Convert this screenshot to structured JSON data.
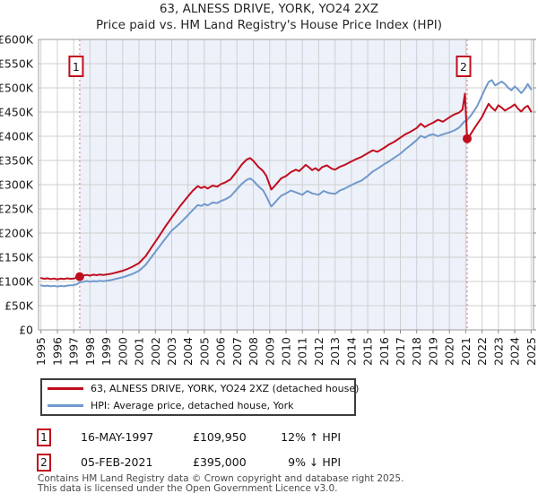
{
  "title": {
    "line1": "63, ALNESS DRIVE, YORK, YO24 2XZ",
    "line2": "Price paid vs. HM Land Registry's House Price Index (HPI)"
  },
  "chart_data": {
    "type": "line",
    "title": "63, ALNESS DRIVE, YORK, YO24 2XZ — Price paid vs. HPI",
    "xlim": [
      1994.85,
      2025.15
    ],
    "ylim": [
      0,
      600000
    ],
    "grid": true,
    "legend_position": "bottom",
    "x_ticks": [
      1995,
      1996,
      1997,
      1998,
      1999,
      2000,
      2001,
      2002,
      2003,
      2004,
      2005,
      2006,
      2007,
      2008,
      2009,
      2010,
      2011,
      2012,
      2013,
      2014,
      2015,
      2016,
      2017,
      2018,
      2019,
      2020,
      2021,
      2022,
      2023,
      2024,
      2025
    ],
    "y_ticks": [
      {
        "v": 0,
        "label": "£0"
      },
      {
        "v": 50000,
        "label": "£50K"
      },
      {
        "v": 100000,
        "label": "£100K"
      },
      {
        "v": 150000,
        "label": "£150K"
      },
      {
        "v": 200000,
        "label": "£200K"
      },
      {
        "v": 250000,
        "label": "£250K"
      },
      {
        "v": 300000,
        "label": "£300K"
      },
      {
        "v": 350000,
        "label": "£350K"
      },
      {
        "v": 400000,
        "label": "£400K"
      },
      {
        "v": 450000,
        "label": "£450K"
      },
      {
        "v": 500000,
        "label": "£500K"
      },
      {
        "v": 550000,
        "label": "£550K"
      },
      {
        "v": 600000,
        "label": "£600K"
      }
    ],
    "colors": {
      "grid": "#cfcfcf",
      "border": "#9a9a9a",
      "shade": "#edf1fa",
      "dashed": "#e46a6a",
      "tick": "#8a8a8a"
    },
    "shaded_span": {
      "from": 1997.37,
      "to": 2021.09
    },
    "sale_markers": [
      {
        "label": "1",
        "year": 1997.37,
        "price": 109950
      },
      {
        "label": "2",
        "year": 2021.09,
        "price": 395000
      }
    ],
    "series": [
      {
        "name": "63, ALNESS DRIVE, YORK, YO24 2XZ (detached house)",
        "color": "#c00d1e",
        "points": [
          [
            1995.0,
            107000
          ],
          [
            1995.2,
            105500
          ],
          [
            1995.4,
            106500
          ],
          [
            1995.6,
            105000
          ],
          [
            1995.8,
            106200
          ],
          [
            1996.0,
            104500
          ],
          [
            1996.2,
            106000
          ],
          [
            1996.4,
            105000
          ],
          [
            1996.6,
            106500
          ],
          [
            1996.8,
            105500
          ],
          [
            1997.0,
            106200
          ],
          [
            1997.2,
            107500
          ],
          [
            1997.37,
            109950
          ],
          [
            1997.6,
            112500
          ],
          [
            1997.8,
            113500
          ],
          [
            1998.0,
            112000
          ],
          [
            1998.2,
            114000
          ],
          [
            1998.4,
            113000
          ],
          [
            1998.6,
            114500
          ],
          [
            1998.8,
            113500
          ],
          [
            1999.0,
            114500
          ],
          [
            1999.3,
            116000
          ],
          [
            1999.6,
            118500
          ],
          [
            2000.0,
            122000
          ],
          [
            2000.3,
            126000
          ],
          [
            2000.6,
            130500
          ],
          [
            2001.0,
            138000
          ],
          [
            2001.4,
            152000
          ],
          [
            2001.8,
            172000
          ],
          [
            2002.2,
            192000
          ],
          [
            2002.6,
            213000
          ],
          [
            2003.0,
            232000
          ],
          [
            2003.5,
            255000
          ],
          [
            2004.0,
            276000
          ],
          [
            2004.3,
            288000
          ],
          [
            2004.6,
            297000
          ],
          [
            2004.8,
            293000
          ],
          [
            2005.0,
            296000
          ],
          [
            2005.2,
            292000
          ],
          [
            2005.5,
            298000
          ],
          [
            2005.8,
            296000
          ],
          [
            2006.0,
            301000
          ],
          [
            2006.3,
            305000
          ],
          [
            2006.6,
            311000
          ],
          [
            2007.0,
            328000
          ],
          [
            2007.3,
            342000
          ],
          [
            2007.6,
            352000
          ],
          [
            2007.8,
            355000
          ],
          [
            2008.0,
            349000
          ],
          [
            2008.3,
            337000
          ],
          [
            2008.6,
            328000
          ],
          [
            2008.8,
            318000
          ],
          [
            2009.0,
            299000
          ],
          [
            2009.1,
            290000
          ],
          [
            2009.3,
            297000
          ],
          [
            2009.5,
            305000
          ],
          [
            2009.7,
            313000
          ],
          [
            2010.0,
            318000
          ],
          [
            2010.3,
            326000
          ],
          [
            2010.6,
            331000
          ],
          [
            2010.8,
            328000
          ],
          [
            2011.0,
            334000
          ],
          [
            2011.2,
            341000
          ],
          [
            2011.4,
            336000
          ],
          [
            2011.6,
            330000
          ],
          [
            2011.8,
            334000
          ],
          [
            2012.0,
            329000
          ],
          [
            2012.2,
            336000
          ],
          [
            2012.5,
            340000
          ],
          [
            2012.8,
            333000
          ],
          [
            2013.0,
            331000
          ],
          [
            2013.3,
            337000
          ],
          [
            2013.6,
            341000
          ],
          [
            2014.0,
            348000
          ],
          [
            2014.3,
            353000
          ],
          [
            2014.6,
            357000
          ],
          [
            2015.0,
            365000
          ],
          [
            2015.3,
            371000
          ],
          [
            2015.6,
            368000
          ],
          [
            2016.0,
            376000
          ],
          [
            2016.3,
            383000
          ],
          [
            2016.6,
            388000
          ],
          [
            2017.0,
            397000
          ],
          [
            2017.3,
            404000
          ],
          [
            2017.6,
            409000
          ],
          [
            2018.0,
            417000
          ],
          [
            2018.25,
            426000
          ],
          [
            2018.5,
            419000
          ],
          [
            2018.75,
            424000
          ],
          [
            2019.0,
            428000
          ],
          [
            2019.3,
            434000
          ],
          [
            2019.6,
            430000
          ],
          [
            2020.0,
            439000
          ],
          [
            2020.3,
            445000
          ],
          [
            2020.6,
            449000
          ],
          [
            2020.8,
            455000
          ],
          [
            2020.95,
            488000
          ],
          [
            2021.09,
            395000
          ],
          [
            2021.3,
            404000
          ],
          [
            2021.5,
            415000
          ],
          [
            2021.7,
            425000
          ],
          [
            2022.0,
            440000
          ],
          [
            2022.2,
            454000
          ],
          [
            2022.4,
            467000
          ],
          [
            2022.6,
            459000
          ],
          [
            2022.8,
            453000
          ],
          [
            2023.0,
            464000
          ],
          [
            2023.2,
            459000
          ],
          [
            2023.4,
            453000
          ],
          [
            2023.6,
            457000
          ],
          [
            2023.8,
            461000
          ],
          [
            2024.0,
            466000
          ],
          [
            2024.2,
            457000
          ],
          [
            2024.4,
            451000
          ],
          [
            2024.6,
            459000
          ],
          [
            2024.8,
            463000
          ],
          [
            2025.0,
            451000
          ]
        ]
      },
      {
        "name": "HPI: Average price, detached house, York",
        "color": "#7199cc",
        "points": [
          [
            1995.0,
            92000
          ],
          [
            1995.2,
            90500
          ],
          [
            1995.4,
            91500
          ],
          [
            1995.6,
            90000
          ],
          [
            1995.8,
            91200
          ],
          [
            1996.0,
            89500
          ],
          [
            1996.2,
            91000
          ],
          [
            1996.4,
            90000
          ],
          [
            1996.6,
            91500
          ],
          [
            1996.8,
            92000
          ],
          [
            1997.0,
            92500
          ],
          [
            1997.2,
            94500
          ],
          [
            1997.37,
            98200
          ],
          [
            1997.6,
            99500
          ],
          [
            1997.8,
            101000
          ],
          [
            1998.0,
            99500
          ],
          [
            1998.2,
            101000
          ],
          [
            1998.4,
            100000
          ],
          [
            1998.6,
            101500
          ],
          [
            1998.8,
            100500
          ],
          [
            1999.0,
            101500
          ],
          [
            1999.3,
            103000
          ],
          [
            1999.6,
            105500
          ],
          [
            2000.0,
            108500
          ],
          [
            2000.3,
            112000
          ],
          [
            2000.6,
            115500
          ],
          [
            2001.0,
            122000
          ],
          [
            2001.4,
            134000
          ],
          [
            2001.8,
            152000
          ],
          [
            2002.2,
            170000
          ],
          [
            2002.6,
            188000
          ],
          [
            2003.0,
            205000
          ],
          [
            2003.5,
            220000
          ],
          [
            2004.0,
            237000
          ],
          [
            2004.3,
            248000
          ],
          [
            2004.6,
            258000
          ],
          [
            2004.8,
            256000
          ],
          [
            2005.0,
            260000
          ],
          [
            2005.2,
            257000
          ],
          [
            2005.5,
            263000
          ],
          [
            2005.8,
            262000
          ],
          [
            2006.0,
            266000
          ],
          [
            2006.3,
            270000
          ],
          [
            2006.6,
            276000
          ],
          [
            2007.0,
            291000
          ],
          [
            2007.3,
            302000
          ],
          [
            2007.6,
            310000
          ],
          [
            2007.8,
            313000
          ],
          [
            2008.0,
            308000
          ],
          [
            2008.3,
            297000
          ],
          [
            2008.6,
            288000
          ],
          [
            2008.8,
            276000
          ],
          [
            2009.0,
            261000
          ],
          [
            2009.1,
            255000
          ],
          [
            2009.3,
            262000
          ],
          [
            2009.5,
            270000
          ],
          [
            2009.7,
            277000
          ],
          [
            2010.0,
            282000
          ],
          [
            2010.3,
            288000
          ],
          [
            2010.6,
            284000
          ],
          [
            2011.0,
            279000
          ],
          [
            2011.3,
            287000
          ],
          [
            2011.6,
            282000
          ],
          [
            2012.0,
            279000
          ],
          [
            2012.3,
            287000
          ],
          [
            2012.6,
            283000
          ],
          [
            2013.0,
            281000
          ],
          [
            2013.3,
            288000
          ],
          [
            2013.6,
            292000
          ],
          [
            2014.0,
            299000
          ],
          [
            2014.3,
            304000
          ],
          [
            2014.6,
            308000
          ],
          [
            2015.0,
            318000
          ],
          [
            2015.3,
            327000
          ],
          [
            2015.6,
            333000
          ],
          [
            2016.0,
            342000
          ],
          [
            2016.3,
            348000
          ],
          [
            2016.6,
            355000
          ],
          [
            2017.0,
            364000
          ],
          [
            2017.3,
            373000
          ],
          [
            2017.6,
            381000
          ],
          [
            2018.0,
            392000
          ],
          [
            2018.25,
            401000
          ],
          [
            2018.5,
            397000
          ],
          [
            2018.75,
            402000
          ],
          [
            2019.0,
            404000
          ],
          [
            2019.3,
            400000
          ],
          [
            2019.6,
            404000
          ],
          [
            2020.0,
            408000
          ],
          [
            2020.3,
            412000
          ],
          [
            2020.6,
            418000
          ],
          [
            2020.9,
            430000
          ],
          [
            2021.09,
            434000
          ],
          [
            2021.3,
            442000
          ],
          [
            2021.5,
            452000
          ],
          [
            2021.7,
            462000
          ],
          [
            2022.0,
            484000
          ],
          [
            2022.2,
            499000
          ],
          [
            2022.4,
            512000
          ],
          [
            2022.6,
            516000
          ],
          [
            2022.8,
            505000
          ],
          [
            2023.0,
            509000
          ],
          [
            2023.2,
            513000
          ],
          [
            2023.4,
            508000
          ],
          [
            2023.6,
            500000
          ],
          [
            2023.8,
            495000
          ],
          [
            2024.0,
            503000
          ],
          [
            2024.2,
            497000
          ],
          [
            2024.4,
            489000
          ],
          [
            2024.6,
            497000
          ],
          [
            2024.8,
            508000
          ],
          [
            2025.0,
            497000
          ]
        ]
      }
    ]
  },
  "sales_table": {
    "rows": [
      {
        "num": "1",
        "date": "16-MAY-1997",
        "price": "£109,950",
        "vs_hpi": "12% ↑ HPI"
      },
      {
        "num": "2",
        "date": "05-FEB-2021",
        "price": "£395,000",
        "vs_hpi": "9% ↓ HPI"
      }
    ]
  },
  "footer": {
    "line1": "Contains HM Land Registry data © Crown copyright and database right 2025.",
    "line2": "This data is licensed under the Open Government Licence v3.0."
  }
}
